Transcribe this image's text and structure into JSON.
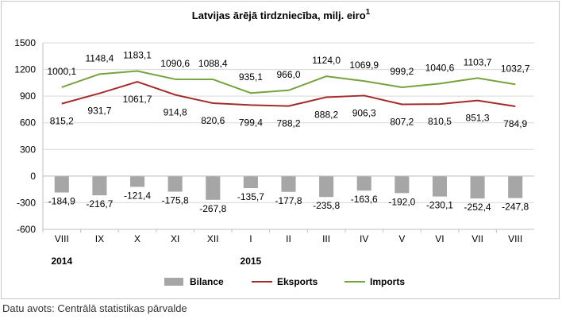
{
  "chart_data": {
    "type": "bar+line",
    "title": "Latvijas ārējā tirdzniecība, milj. eiro",
    "title_superscript": "1",
    "categories": [
      "VIII",
      "IX",
      "X",
      "XI",
      "XII",
      "I",
      "II",
      "III",
      "IV",
      "V",
      "VI",
      "VII",
      "VIII"
    ],
    "year_labels": [
      {
        "label": "2014",
        "category_index": 0
      },
      {
        "label": "2015",
        "category_index": 5
      }
    ],
    "ylim": [
      -600,
      1500
    ],
    "yticks": [
      -600,
      -300,
      0,
      300,
      600,
      900,
      1200,
      1500
    ],
    "grid": true,
    "legend_position": "bottom",
    "series": [
      {
        "name": "Bilance",
        "type": "bar",
        "color": "#a6a6a6",
        "values": [
          -184.9,
          -216.7,
          -121.4,
          -175.8,
          -267.8,
          -135.7,
          -177.8,
          -235.8,
          -163.6,
          -192.0,
          -230.1,
          -252.4,
          -247.8
        ],
        "labels": [
          "-184,9",
          "-216,7",
          "-121,4",
          "-175,8",
          "-267,8",
          "-135,7",
          "-177,8",
          "-235,8",
          "-163,6",
          "-192,0",
          "-230,1",
          "-252,4",
          "-247,8"
        ]
      },
      {
        "name": "Eksports",
        "type": "line",
        "color": "#a52a2a",
        "values": [
          815.2,
          931.7,
          1061.7,
          914.8,
          820.6,
          799.4,
          788.2,
          888.2,
          906.3,
          807.2,
          810.5,
          851.3,
          784.9
        ],
        "labels": [
          "815,2",
          "931,7",
          "1061,7",
          "914,8",
          "820,6",
          "799,4",
          "788,2",
          "888,2",
          "906,3",
          "807,2",
          "810,5",
          "851,3",
          "784,9"
        ]
      },
      {
        "name": "Imports",
        "type": "line",
        "color": "#76a33c",
        "values": [
          1000.1,
          1148.4,
          1183.1,
          1090.6,
          1088.4,
          935.1,
          966.0,
          1124.0,
          1069.9,
          999.2,
          1040.6,
          1103.7,
          1032.7
        ],
        "labels": [
          "1000,1",
          "1148,4",
          "1183,1",
          "1090,6",
          "1088,4",
          "935,1",
          "966,0",
          "1124,0",
          "1069,9",
          "999,2",
          "1040,6",
          "1103,7",
          "1032,7"
        ]
      }
    ]
  },
  "source_note": "Datu avots: Centrālā statistikas pārvalde"
}
